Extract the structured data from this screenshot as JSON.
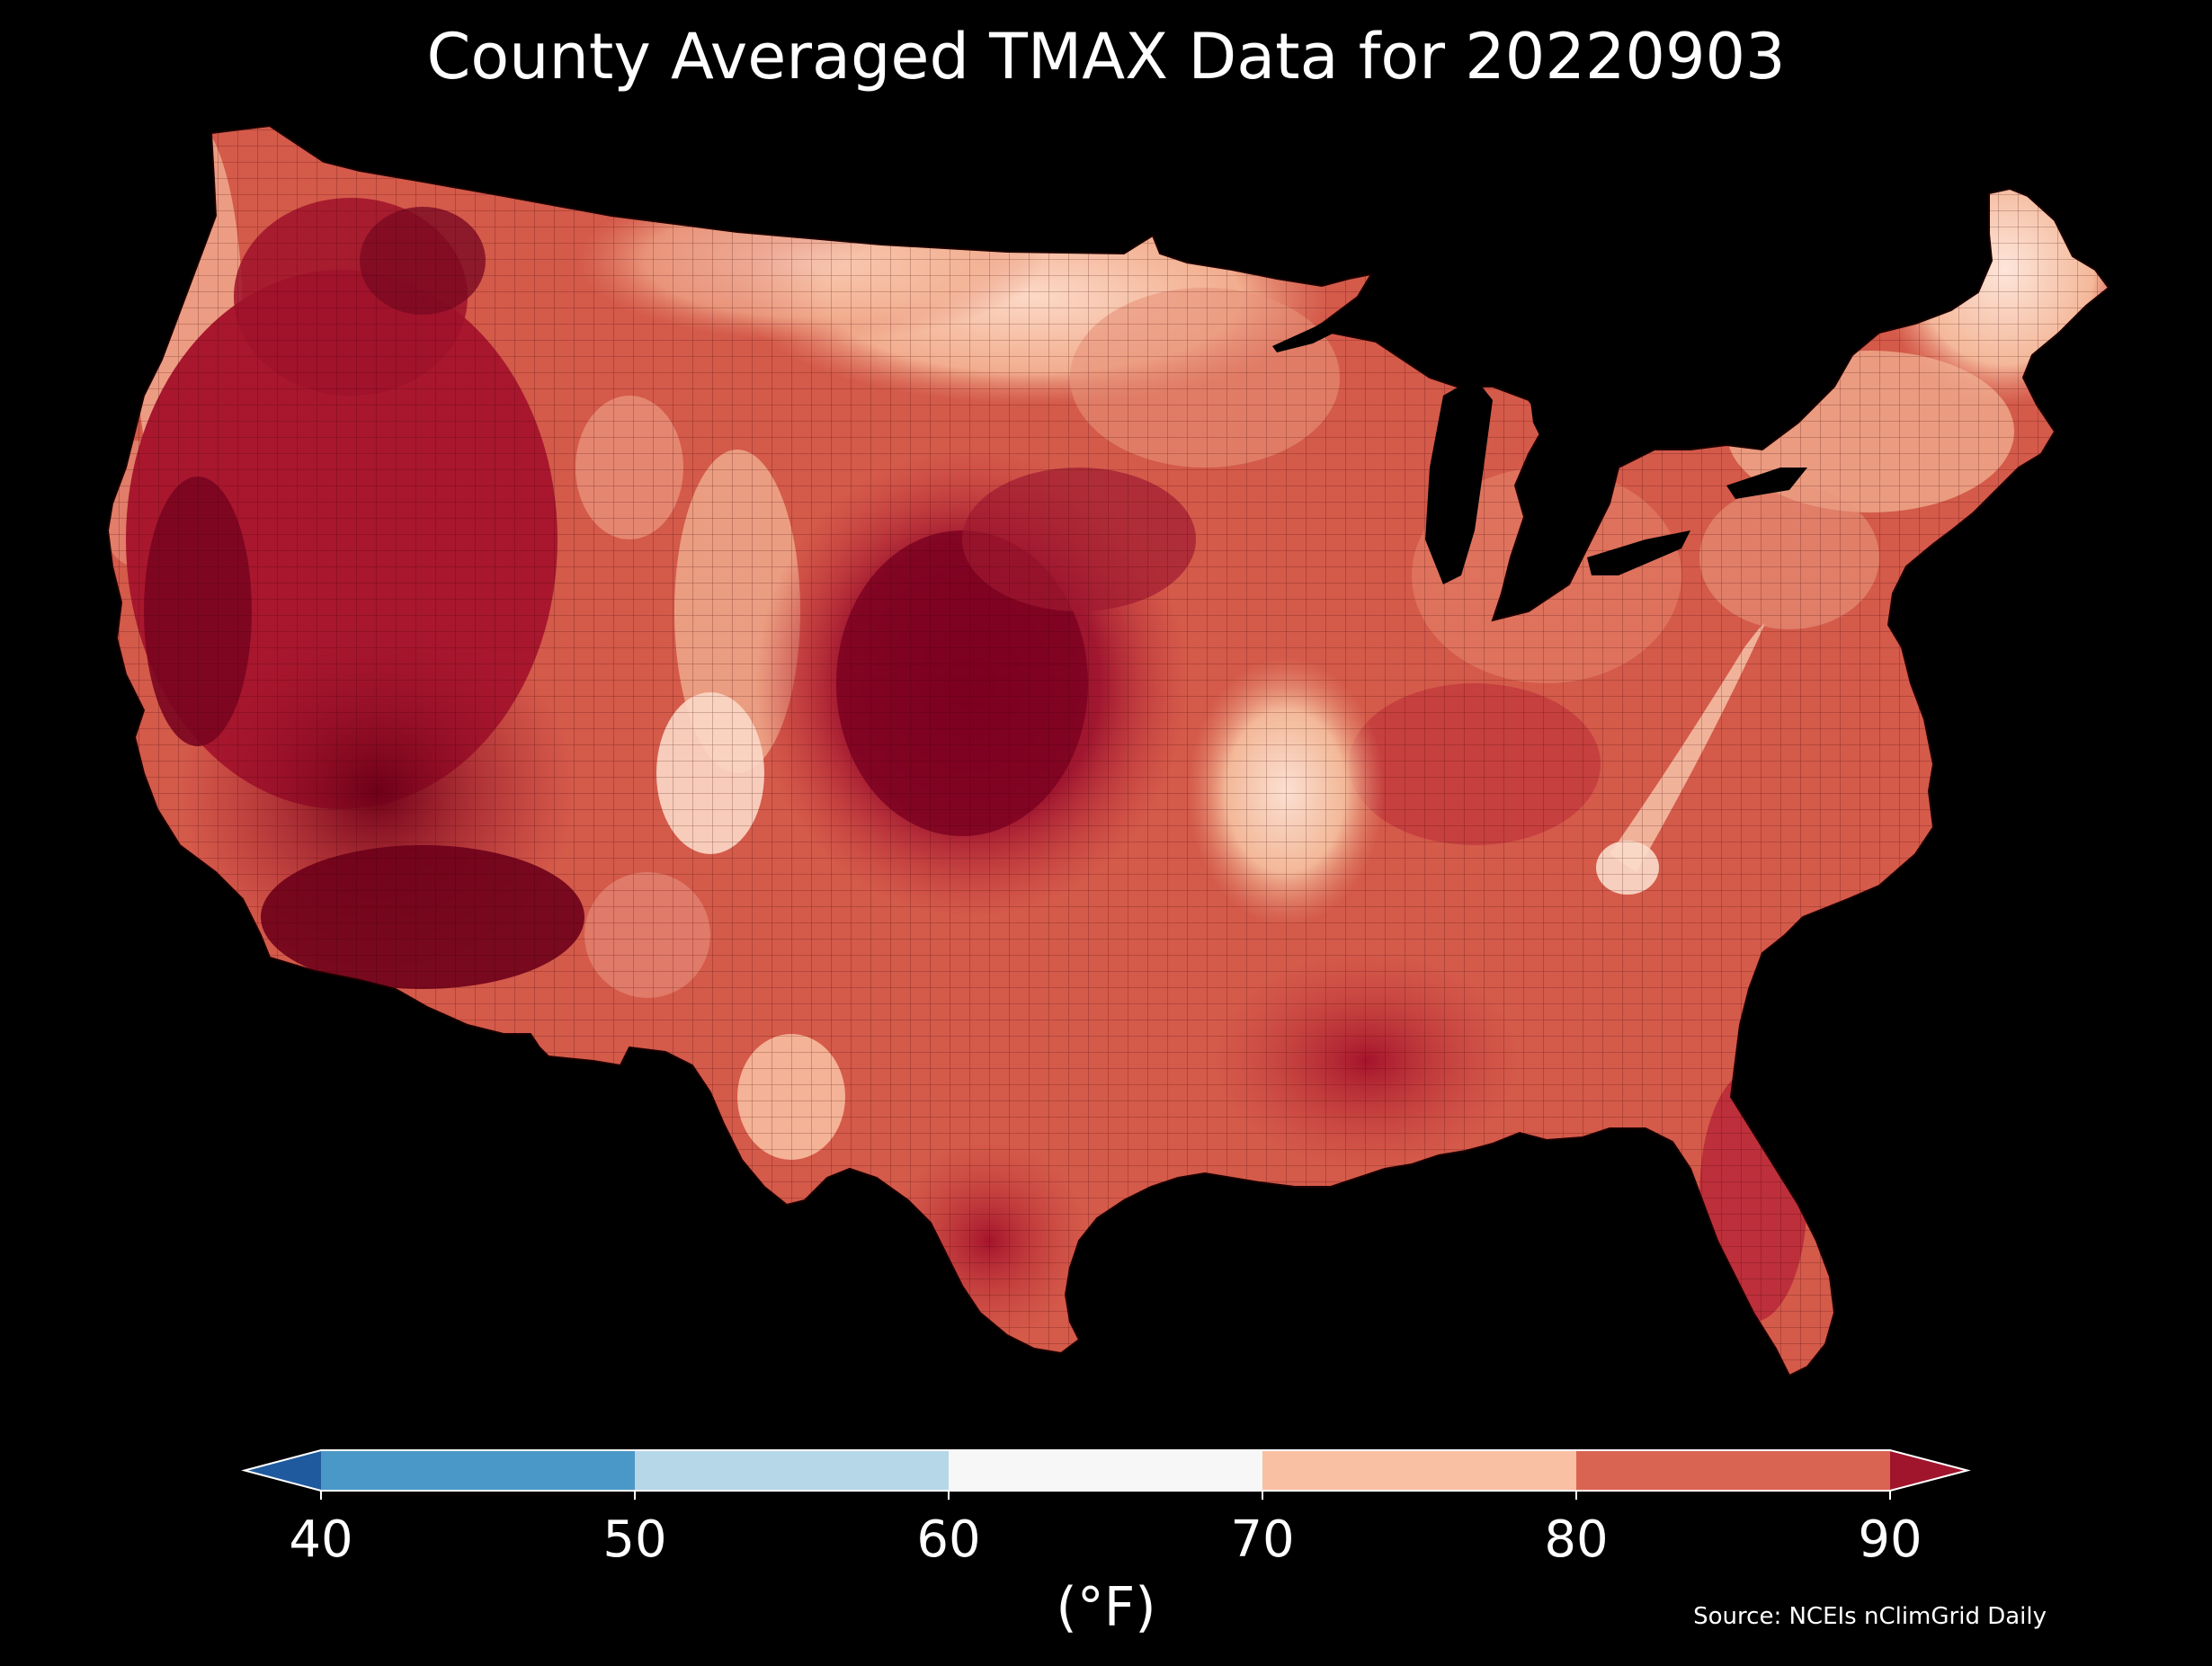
{
  "title": "County Averaged TMAX Data for 20220903",
  "map": {
    "region": "Contiguous United States (county level)",
    "background_color": "#000000",
    "border_color": "#1a0000",
    "icon": "us-county-choropleth-icon"
  },
  "colorbar": {
    "unit_label": "(°F)",
    "ticks": [
      "40",
      "50",
      "60",
      "70",
      "80",
      "90"
    ],
    "bins": [
      {
        "range": "<40",
        "color": "#1f5a9e"
      },
      {
        "range": "40-50",
        "color": "#4a98c8"
      },
      {
        "range": "50-60",
        "color": "#b6d7e8"
      },
      {
        "range": "60-70",
        "color": "#f7f7f7"
      },
      {
        "range": "70-80",
        "color": "#f9c0a3"
      },
      {
        "range": "80-90",
        "color": "#da6452"
      },
      {
        "range": ">90",
        "color": "#a0142c"
      }
    ],
    "extend": "both"
  },
  "source": "Source: NCEIs nClimGrid Daily"
}
